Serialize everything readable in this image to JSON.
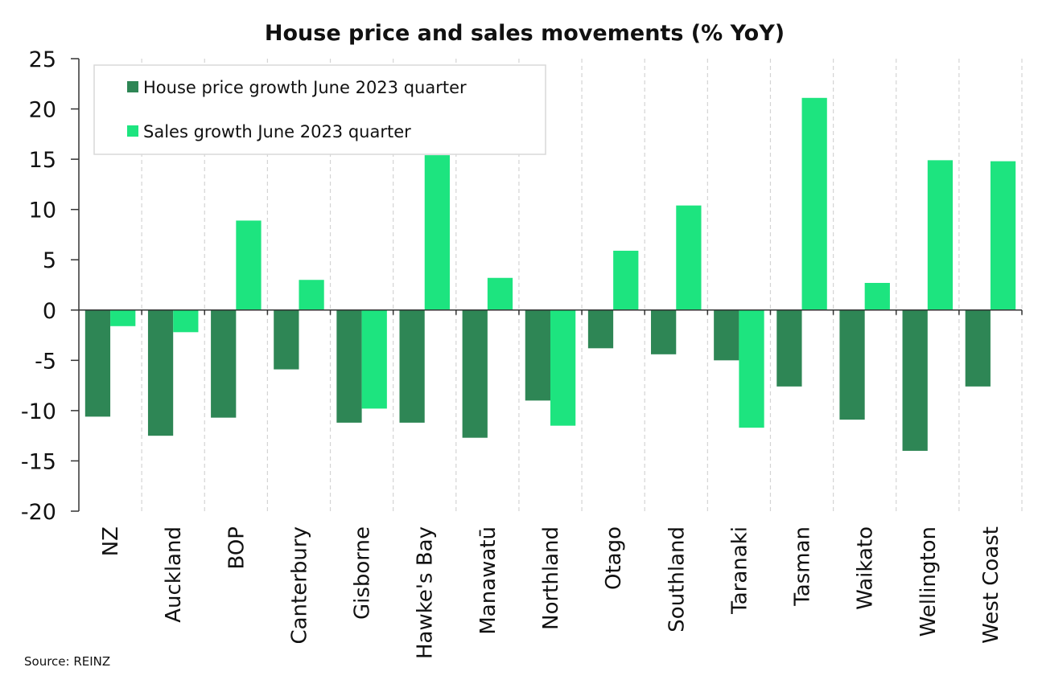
{
  "chart_data": {
    "type": "bar",
    "title": "House price and sales movements (% YoY)",
    "source": "Source: REINZ",
    "categories": [
      "NZ",
      "Auckland",
      "BOP",
      "Canterbury",
      "Gisborne",
      "Hawke's Bay",
      "Manawatū",
      "Northland",
      "Otago",
      "Southland",
      "Taranaki",
      "Tasman",
      "Waikato",
      "Wellington",
      "West Coast"
    ],
    "series": [
      {
        "name": "House price growth June 2023 quarter",
        "color": "#2e8655",
        "values": [
          -10.6,
          -12.5,
          -10.7,
          -5.9,
          -11.2,
          -11.2,
          -12.7,
          -9.0,
          -3.8,
          -4.4,
          -5.0,
          -7.6,
          -10.9,
          -14.0,
          -7.6
        ]
      },
      {
        "name": "Sales growth June 2023 quarter",
        "color": "#1de47f",
        "values": [
          -1.6,
          -2.2,
          8.9,
          3.0,
          -9.8,
          15.4,
          3.2,
          -11.5,
          5.9,
          10.4,
          -11.7,
          21.1,
          2.7,
          14.9,
          14.8
        ]
      }
    ],
    "ylim": [
      -20,
      25
    ],
    "yticks": [
      -20,
      -15,
      -10,
      -5,
      0,
      5,
      10,
      15,
      20,
      25
    ],
    "xlabel": "",
    "ylabel": "",
    "grid": "vertical dashed category separators",
    "legend": "top-left"
  }
}
